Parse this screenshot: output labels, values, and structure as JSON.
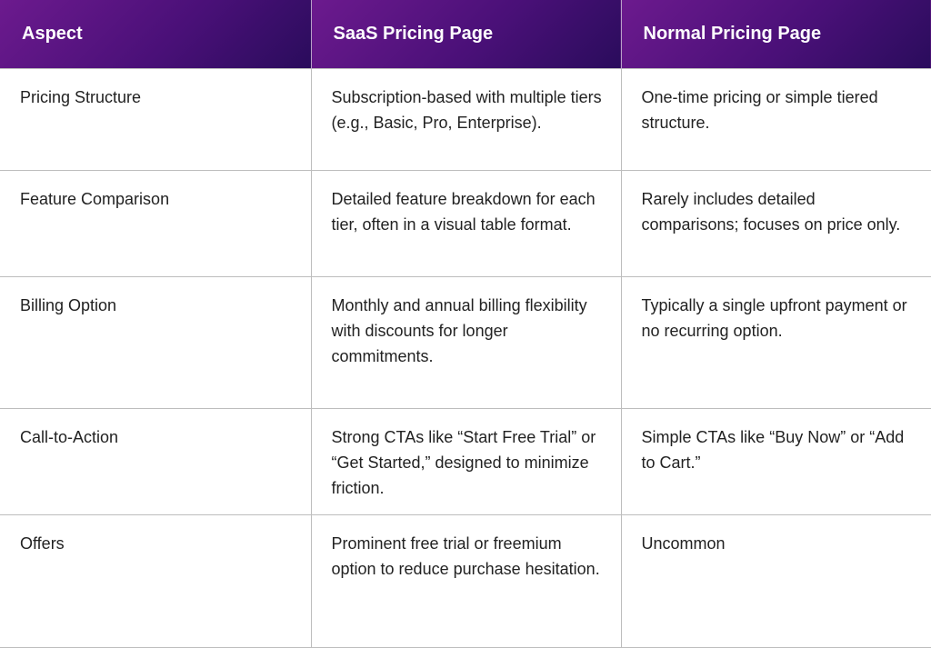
{
  "headers": [
    "Aspect",
    "SaaS Pricing Page",
    "Normal Pricing Page"
  ],
  "rows": [
    [
      "Pricing Structure",
      "Subscription-based with multiple tiers (e.g., Basic, Pro, Enterprise).",
      "One-time pricing or simple tiered structure."
    ],
    [
      "Feature Comparison",
      "Detailed feature breakdown for each tier, often in a visual table format.",
      "Rarely includes detailed comparisons; focuses on price only."
    ],
    [
      "Billing Option",
      "Monthly and annual billing flexibility with discounts for longer commitments.",
      "Typically a single upfront payment or no recurring option."
    ],
    [
      "Call-to-Action",
      "Strong CTAs like “Start Free Trial” or “Get Started,” designed to minimize friction.",
      "Simple CTAs like “Buy Now” or “Add to Cart.”"
    ],
    [
      "Offers",
      "Prominent free trial or freemium option to reduce purchase hesitation.",
      "Uncommon"
    ]
  ]
}
